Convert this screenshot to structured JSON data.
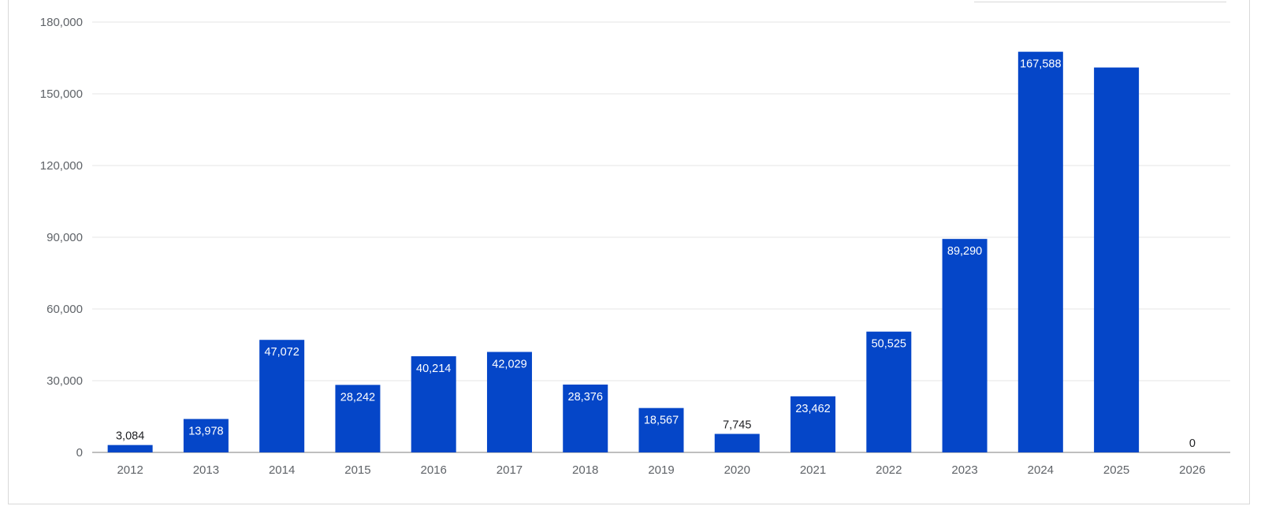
{
  "chart_data": {
    "type": "bar",
    "title": "",
    "xlabel": "",
    "ylabel": "",
    "categories": [
      "2012",
      "2013",
      "2014",
      "2015",
      "2016",
      "2017",
      "2018",
      "2019",
      "2020",
      "2021",
      "2022",
      "2023",
      "2024",
      "2025",
      "2026"
    ],
    "values": [
      3084,
      13978,
      47072,
      28242,
      40214,
      42029,
      28376,
      18567,
      7745,
      23462,
      50525,
      89290,
      167588,
      161000,
      0
    ],
    "data_labels": [
      "3,084",
      "13,978",
      "47,072",
      "28,242",
      "40,214",
      "42,029",
      "28,376",
      "18,567",
      "7,745",
      "23,462",
      "50,525",
      "89,290",
      "167,588",
      "",
      "0"
    ],
    "ylim": [
      0,
      180000
    ],
    "yticks": [
      0,
      30000,
      60000,
      90000,
      120000,
      150000,
      180000
    ],
    "ytick_labels": [
      "0",
      "30,000",
      "60,000",
      "90,000",
      "120,000",
      "150,000",
      "180,000"
    ],
    "bar_color": "#0546c8",
    "grid": true,
    "legend": "none"
  }
}
